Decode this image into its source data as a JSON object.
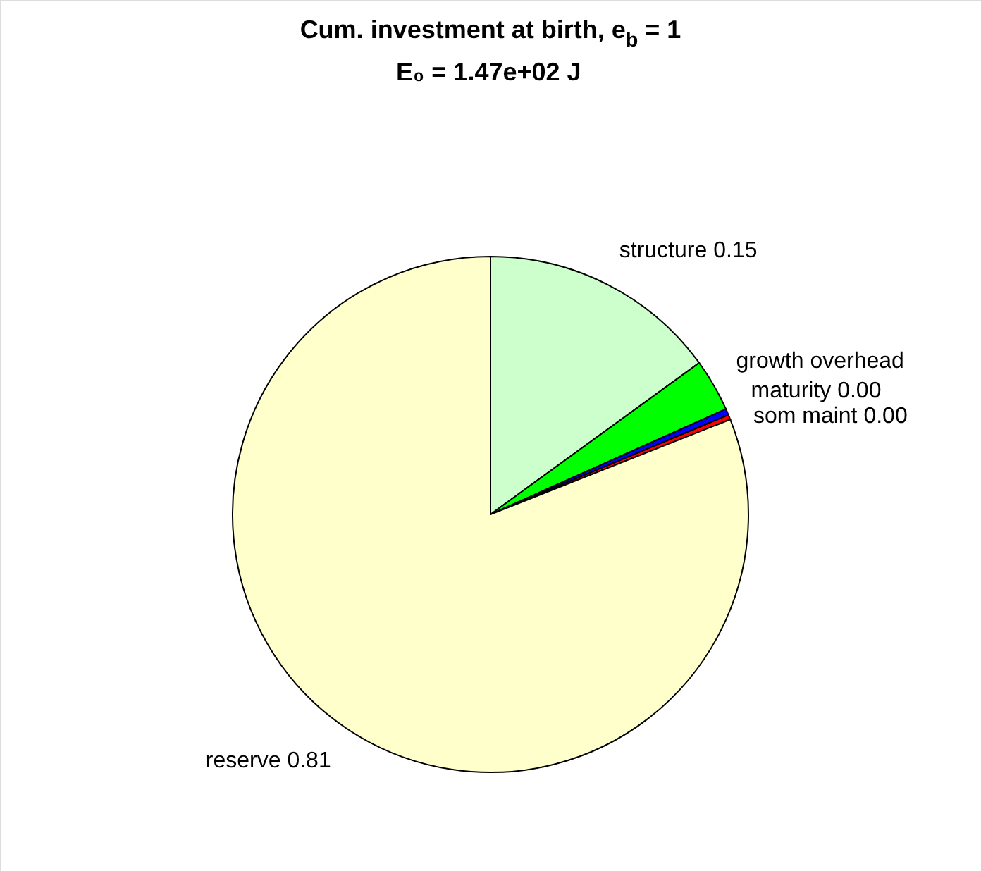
{
  "chart_data": {
    "type": "pie",
    "title": "Cum. investment at birth, e$_{b}$ = 1",
    "subtitle": "E₀ = 1.47e+02 J",
    "categories": [
      "structure",
      "growth overhead",
      "maturity",
      "som maint",
      "reserve"
    ],
    "values": [
      0.15,
      0.033,
      0.004,
      0.003,
      0.81
    ],
    "colors": [
      "#ccffcc",
      "#00ff00",
      "#0000ff",
      "#ff0000",
      "#ffffcc"
    ],
    "value_labels": [
      "0.15",
      null,
      "0.00",
      "0.00",
      "0.81"
    ]
  }
}
